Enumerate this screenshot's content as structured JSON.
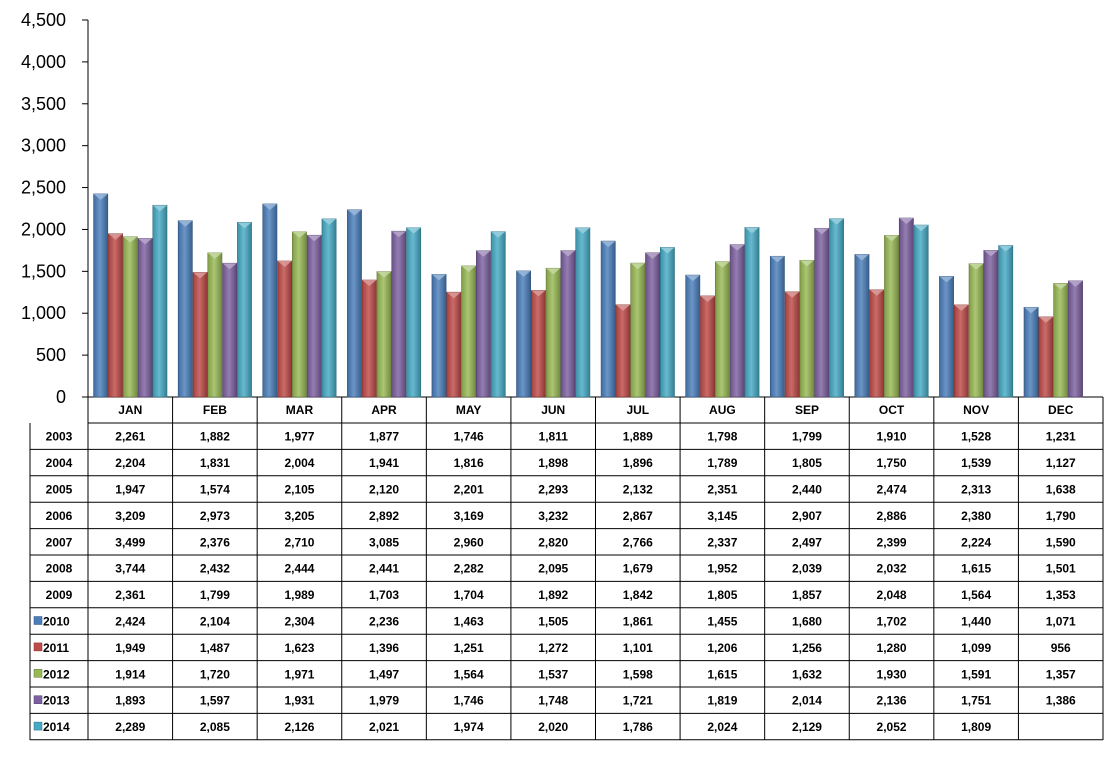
{
  "chart_data": {
    "type": "bar",
    "categories": [
      "JAN",
      "FEB",
      "MAR",
      "APR",
      "MAY",
      "JUN",
      "JUL",
      "AUG",
      "SEP",
      "OCT",
      "NOV",
      "DEC"
    ],
    "ylim": [
      0,
      4500
    ],
    "yticks": [
      "0",
      "500",
      "1,000",
      "1,500",
      "2,000",
      "2,500",
      "3,000",
      "3,500",
      "4,000",
      "4,500"
    ],
    "grid": false,
    "legend": "in-table",
    "series": [
      {
        "name": "2003",
        "charted": false,
        "values": [
          2261,
          1882,
          1977,
          1877,
          1746,
          1811,
          1889,
          1798,
          1799,
          1910,
          1528,
          1231
        ],
        "labels": [
          "2,261",
          "1,882",
          "1,977",
          "1,877",
          "1,746",
          "1,811",
          "1,889",
          "1,798",
          "1,799",
          "1,910",
          "1,528",
          "1,231"
        ]
      },
      {
        "name": "2004",
        "charted": false,
        "values": [
          2204,
          1831,
          2004,
          1941,
          1816,
          1898,
          1896,
          1789,
          1805,
          1750,
          1539,
          1127
        ],
        "labels": [
          "2,204",
          "1,831",
          "2,004",
          "1,941",
          "1,816",
          "1,898",
          "1,896",
          "1,789",
          "1,805",
          "1,750",
          "1,539",
          "1,127"
        ]
      },
      {
        "name": "2005",
        "charted": false,
        "values": [
          1947,
          1574,
          2105,
          2120,
          2201,
          2293,
          2132,
          2351,
          2440,
          2474,
          2313,
          1638
        ],
        "labels": [
          "1,947",
          "1,574",
          "2,105",
          "2,120",
          "2,201",
          "2,293",
          "2,132",
          "2,351",
          "2,440",
          "2,474",
          "2,313",
          "1,638"
        ]
      },
      {
        "name": "2006",
        "charted": false,
        "values": [
          3209,
          2973,
          3205,
          2892,
          3169,
          3232,
          2867,
          3145,
          2907,
          2886,
          2380,
          1790
        ],
        "labels": [
          "3,209",
          "2,973",
          "3,205",
          "2,892",
          "3,169",
          "3,232",
          "2,867",
          "3,145",
          "2,907",
          "2,886",
          "2,380",
          "1,790"
        ]
      },
      {
        "name": "2007",
        "charted": false,
        "values": [
          3499,
          2376,
          2710,
          3085,
          2960,
          2820,
          2766,
          2337,
          2497,
          2399,
          2224,
          1590
        ],
        "labels": [
          "3,499",
          "2,376",
          "2,710",
          "3,085",
          "2,960",
          "2,820",
          "2,766",
          "2,337",
          "2,497",
          "2,399",
          "2,224",
          "1,590"
        ]
      },
      {
        "name": "2008",
        "charted": false,
        "values": [
          3744,
          2432,
          2444,
          2441,
          2282,
          2095,
          1679,
          1952,
          2039,
          2032,
          1615,
          1501
        ],
        "labels": [
          "3,744",
          "2,432",
          "2,444",
          "2,441",
          "2,282",
          "2,095",
          "1,679",
          "1,952",
          "2,039",
          "2,032",
          "1,615",
          "1,501"
        ]
      },
      {
        "name": "2009",
        "charted": false,
        "values": [
          2361,
          1799,
          1989,
          1703,
          1704,
          1892,
          1842,
          1805,
          1857,
          2048,
          1564,
          1353
        ],
        "labels": [
          "2,361",
          "1,799",
          "1,989",
          "1,703",
          "1,704",
          "1,892",
          "1,842",
          "1,805",
          "1,857",
          "2,048",
          "1,564",
          "1,353"
        ]
      },
      {
        "name": "2010",
        "charted": true,
        "color": "#4a7ebb",
        "values": [
          2424,
          2104,
          2304,
          2236,
          1463,
          1505,
          1861,
          1455,
          1680,
          1702,
          1440,
          1071
        ],
        "labels": [
          "2,424",
          "2,104",
          "2,304",
          "2,236",
          "1,463",
          "1,505",
          "1,861",
          "1,455",
          "1,680",
          "1,702",
          "1,440",
          "1,071"
        ]
      },
      {
        "name": "2011",
        "charted": true,
        "color": "#be4b48",
        "values": [
          1949,
          1487,
          1623,
          1396,
          1251,
          1272,
          1101,
          1206,
          1256,
          1280,
          1099,
          956
        ],
        "labels": [
          "1,949",
          "1,487",
          "1,623",
          "1,396",
          "1,251",
          "1,272",
          "1,101",
          "1,206",
          "1,256",
          "1,280",
          "1,099",
          "956"
        ]
      },
      {
        "name": "2012",
        "charted": true,
        "color": "#98b954",
        "values": [
          1914,
          1720,
          1971,
          1497,
          1564,
          1537,
          1598,
          1615,
          1632,
          1930,
          1591,
          1357
        ],
        "labels": [
          "1,914",
          "1,720",
          "1,971",
          "1,497",
          "1,564",
          "1,537",
          "1,598",
          "1,615",
          "1,632",
          "1,930",
          "1,591",
          "1,357"
        ]
      },
      {
        "name": "2013",
        "charted": true,
        "color": "#7d60a0",
        "values": [
          1893,
          1597,
          1931,
          1979,
          1746,
          1748,
          1721,
          1819,
          2014,
          2136,
          1751,
          1386
        ],
        "labels": [
          "1,893",
          "1,597",
          "1,931",
          "1,979",
          "1,746",
          "1,748",
          "1,721",
          "1,819",
          "2,014",
          "2,136",
          "1,751",
          "1,386"
        ]
      },
      {
        "name": "2014",
        "charted": true,
        "color": "#46aac5",
        "values": [
          2289,
          2085,
          2126,
          2021,
          1974,
          2020,
          1786,
          2024,
          2129,
          2052,
          1809,
          null
        ],
        "labels": [
          "2,289",
          "2,085",
          "2,126",
          "2,021",
          "1,974",
          "2,020",
          "1,786",
          "2,024",
          "2,129",
          "2,052",
          "1,809",
          ""
        ]
      }
    ]
  }
}
